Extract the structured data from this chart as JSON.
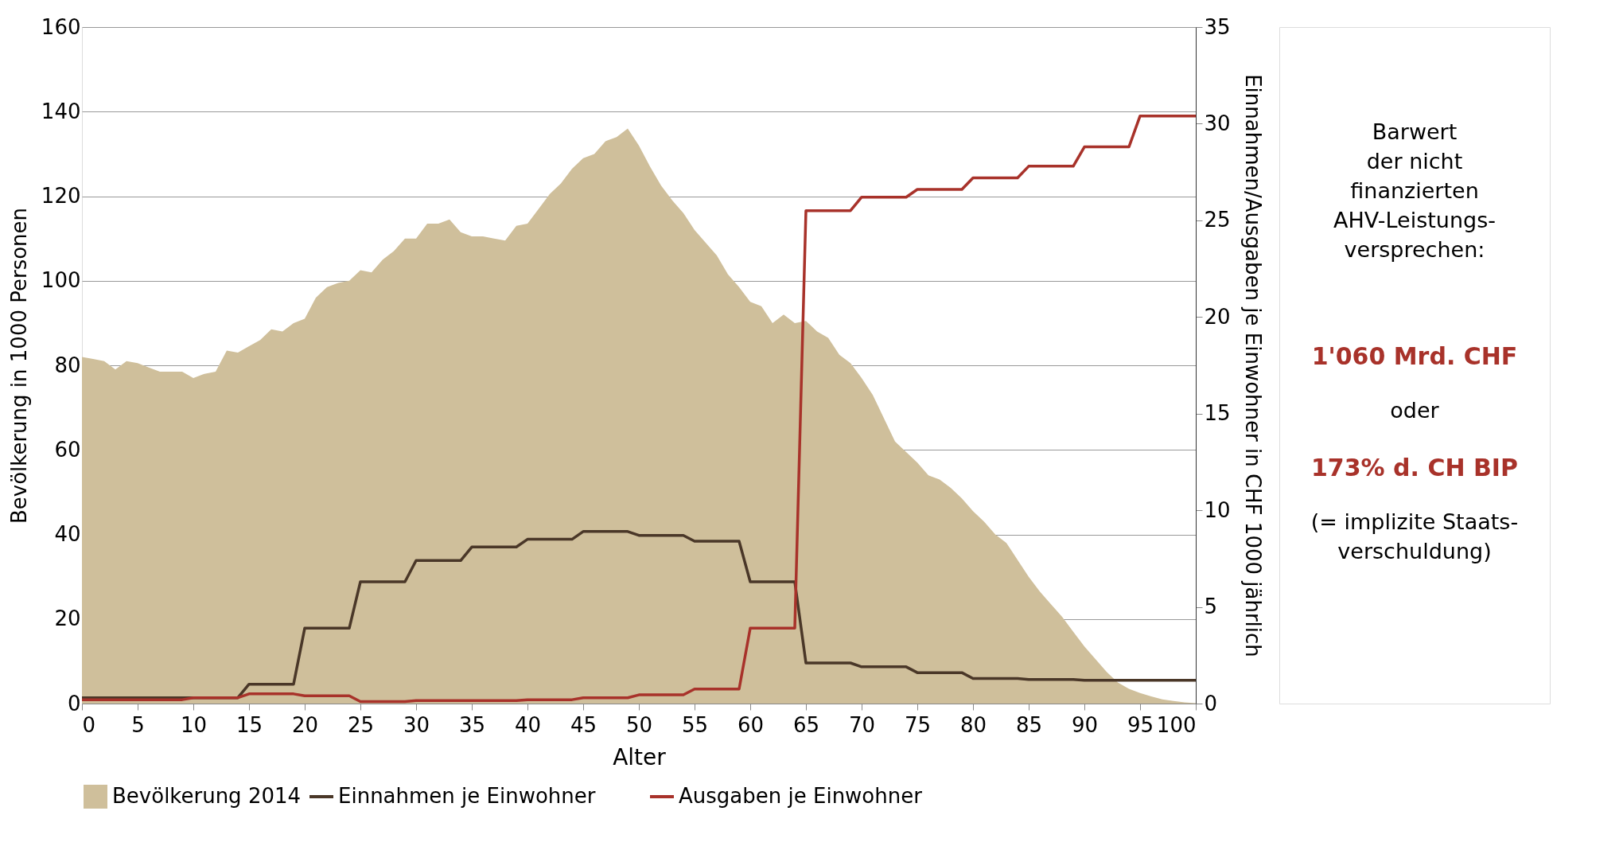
{
  "chart_data": {
    "type": "area",
    "xlabel": "Alter",
    "ylabel": "Bevölkerung in 1000 Personen",
    "y2label": "Einnahmen/Ausgaben je Einwohner in CHF 1000 jährlich",
    "x": [
      0,
      1,
      2,
      3,
      4,
      5,
      6,
      7,
      8,
      9,
      10,
      11,
      12,
      13,
      14,
      15,
      16,
      17,
      18,
      19,
      20,
      21,
      22,
      23,
      24,
      25,
      26,
      27,
      28,
      29,
      30,
      31,
      32,
      33,
      34,
      35,
      36,
      37,
      38,
      39,
      40,
      41,
      42,
      43,
      44,
      45,
      46,
      47,
      48,
      49,
      50,
      51,
      52,
      53,
      54,
      55,
      56,
      57,
      58,
      59,
      60,
      61,
      62,
      63,
      64,
      65,
      66,
      67,
      68,
      69,
      70,
      71,
      72,
      73,
      74,
      75,
      76,
      77,
      78,
      79,
      80,
      81,
      82,
      83,
      84,
      85,
      86,
      87,
      88,
      89,
      90,
      91,
      92,
      93,
      94,
      95,
      96,
      97,
      98,
      99,
      100
    ],
    "series": [
      {
        "name": "Bevölkerung 2014",
        "color": "#cfbf9b",
        "values": [
          82,
          81.5,
          81,
          79,
          81,
          80.5,
          79.5,
          78.5,
          78.5,
          78.5,
          77,
          78,
          78.5,
          83.5,
          83,
          84.5,
          86,
          88.5,
          88,
          90,
          91,
          96,
          98.5,
          99.5,
          100,
          102.5,
          102,
          105,
          107,
          110,
          110,
          113.5,
          113.5,
          114.5,
          111.5,
          110.5,
          110.5,
          110,
          109.5,
          113,
          113.5,
          117,
          120.5,
          123,
          126.5,
          129,
          130,
          133,
          134,
          136,
          132,
          127,
          122.5,
          119,
          116,
          112,
          109,
          106,
          101.5,
          98.5,
          95,
          94,
          90,
          92,
          90,
          90.5,
          88,
          86.5,
          82.5,
          80.5,
          77,
          73,
          67.5,
          62,
          59.5,
          57,
          54,
          53,
          51,
          48.5,
          45.5,
          43,
          40,
          38,
          34,
          30,
          26.5,
          23.5,
          20.5,
          17,
          13.5,
          10.5,
          7.5,
          5,
          3.5,
          2.5,
          1.7,
          1,
          0.6,
          0.3,
          0.1
        ]
      },
      {
        "name": "Einnahmen je Einwohner",
        "type": "line",
        "axis": "y2",
        "color": "#4a3728",
        "values": [
          0.3,
          0.3,
          0.3,
          0.3,
          0.3,
          0.3,
          0.3,
          0.3,
          0.3,
          0.3,
          0.3,
          0.3,
          0.3,
          0.3,
          0.3,
          1,
          1,
          1,
          1,
          1,
          3.9,
          3.9,
          3.9,
          3.9,
          3.9,
          6.3,
          6.3,
          6.3,
          6.3,
          6.3,
          7.4,
          7.4,
          7.4,
          7.4,
          7.4,
          8.1,
          8.1,
          8.1,
          8.1,
          8.1,
          8.5,
          8.5,
          8.5,
          8.5,
          8.5,
          8.9,
          8.9,
          8.9,
          8.9,
          8.9,
          8.7,
          8.7,
          8.7,
          8.7,
          8.7,
          8.4,
          8.4,
          8.4,
          8.4,
          8.4,
          6.3,
          6.3,
          6.3,
          6.3,
          6.3,
          2.1,
          2.1,
          2.1,
          2.1,
          2.1,
          1.9,
          1.9,
          1.9,
          1.9,
          1.9,
          1.6,
          1.6,
          1.6,
          1.6,
          1.6,
          1.3,
          1.3,
          1.3,
          1.3,
          1.3,
          1.25,
          1.25,
          1.25,
          1.25,
          1.25,
          1.2,
          1.2,
          1.2,
          1.2,
          1.2,
          1.2,
          1.2,
          1.2,
          1.2,
          1.2,
          1.2
        ]
      },
      {
        "name": "Ausgaben je Einwohner",
        "type": "line",
        "axis": "y2",
        "color": "#a8322a",
        "values": [
          0.2,
          0.2,
          0.2,
          0.2,
          0.2,
          0.2,
          0.2,
          0.2,
          0.2,
          0.2,
          0.3,
          0.3,
          0.3,
          0.3,
          0.3,
          0.5,
          0.5,
          0.5,
          0.5,
          0.5,
          0.4,
          0.4,
          0.4,
          0.4,
          0.4,
          0.1,
          0.1,
          0.1,
          0.1,
          0.1,
          0.15,
          0.15,
          0.15,
          0.15,
          0.15,
          0.15,
          0.15,
          0.15,
          0.15,
          0.15,
          0.2,
          0.2,
          0.2,
          0.2,
          0.2,
          0.3,
          0.3,
          0.3,
          0.3,
          0.3,
          0.45,
          0.45,
          0.45,
          0.45,
          0.45,
          0.75,
          0.75,
          0.75,
          0.75,
          0.75,
          3.9,
          3.9,
          3.9,
          3.9,
          3.9,
          25.5,
          25.5,
          25.5,
          25.5,
          25.5,
          26.2,
          26.2,
          26.2,
          26.2,
          26.2,
          26.6,
          26.6,
          26.6,
          26.6,
          26.6,
          27.2,
          27.2,
          27.2,
          27.2,
          27.2,
          27.8,
          27.8,
          27.8,
          27.8,
          27.8,
          28.8,
          28.8,
          28.8,
          28.8,
          28.8,
          30.4,
          30.4,
          30.4,
          30.4,
          30.4,
          30.4
        ]
      }
    ],
    "xlim": [
      0,
      100
    ],
    "xticks": [
      0,
      5,
      10,
      15,
      20,
      25,
      30,
      35,
      40,
      45,
      50,
      55,
      60,
      65,
      70,
      75,
      80,
      85,
      90,
      95,
      100
    ],
    "ylim": [
      0,
      160
    ],
    "yticks": [
      0,
      20,
      40,
      60,
      80,
      100,
      120,
      140,
      160
    ],
    "y2lim": [
      0,
      35
    ],
    "y2ticks": [
      0,
      5,
      10,
      15,
      20,
      25,
      30,
      35
    ],
    "grid": "y",
    "legend": "bottom",
    "annotations": [
      "Barwert\nder nicht\nfinanzierten\nAHV-Leistungs-\nversprechen:",
      "1'060 Mrd. CHF",
      "oder",
      "173% d. CH BIP",
      "(= implizite Staats-\nverschuldung)"
    ]
  }
}
